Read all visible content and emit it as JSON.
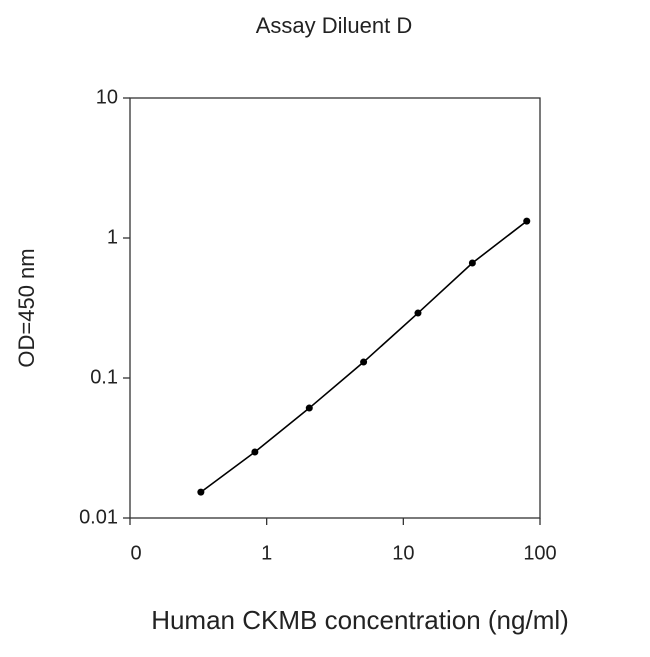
{
  "chart_data": {
    "type": "line",
    "title": "Assay Diluent D",
    "x_label": "Human CKMB concentration (ng/ml)",
    "y_label": "OD=450 nm",
    "x": [
      0.33,
      0.82,
      2.05,
      5.12,
      12.8,
      32,
      80
    ],
    "values": [
      0.0153,
      0.0296,
      0.061,
      0.13,
      0.291,
      0.663,
      1.32
    ],
    "color": "#000000",
    "x_log": true,
    "y_log": true,
    "xlim": [
      0.1,
      100
    ],
    "xticks": [
      {
        "value": 0.1,
        "label": "0"
      },
      1,
      10,
      100
    ],
    "ylim": [
      0.01,
      10
    ],
    "yticks": [
      0.01,
      0.1,
      1,
      10
    ]
  }
}
